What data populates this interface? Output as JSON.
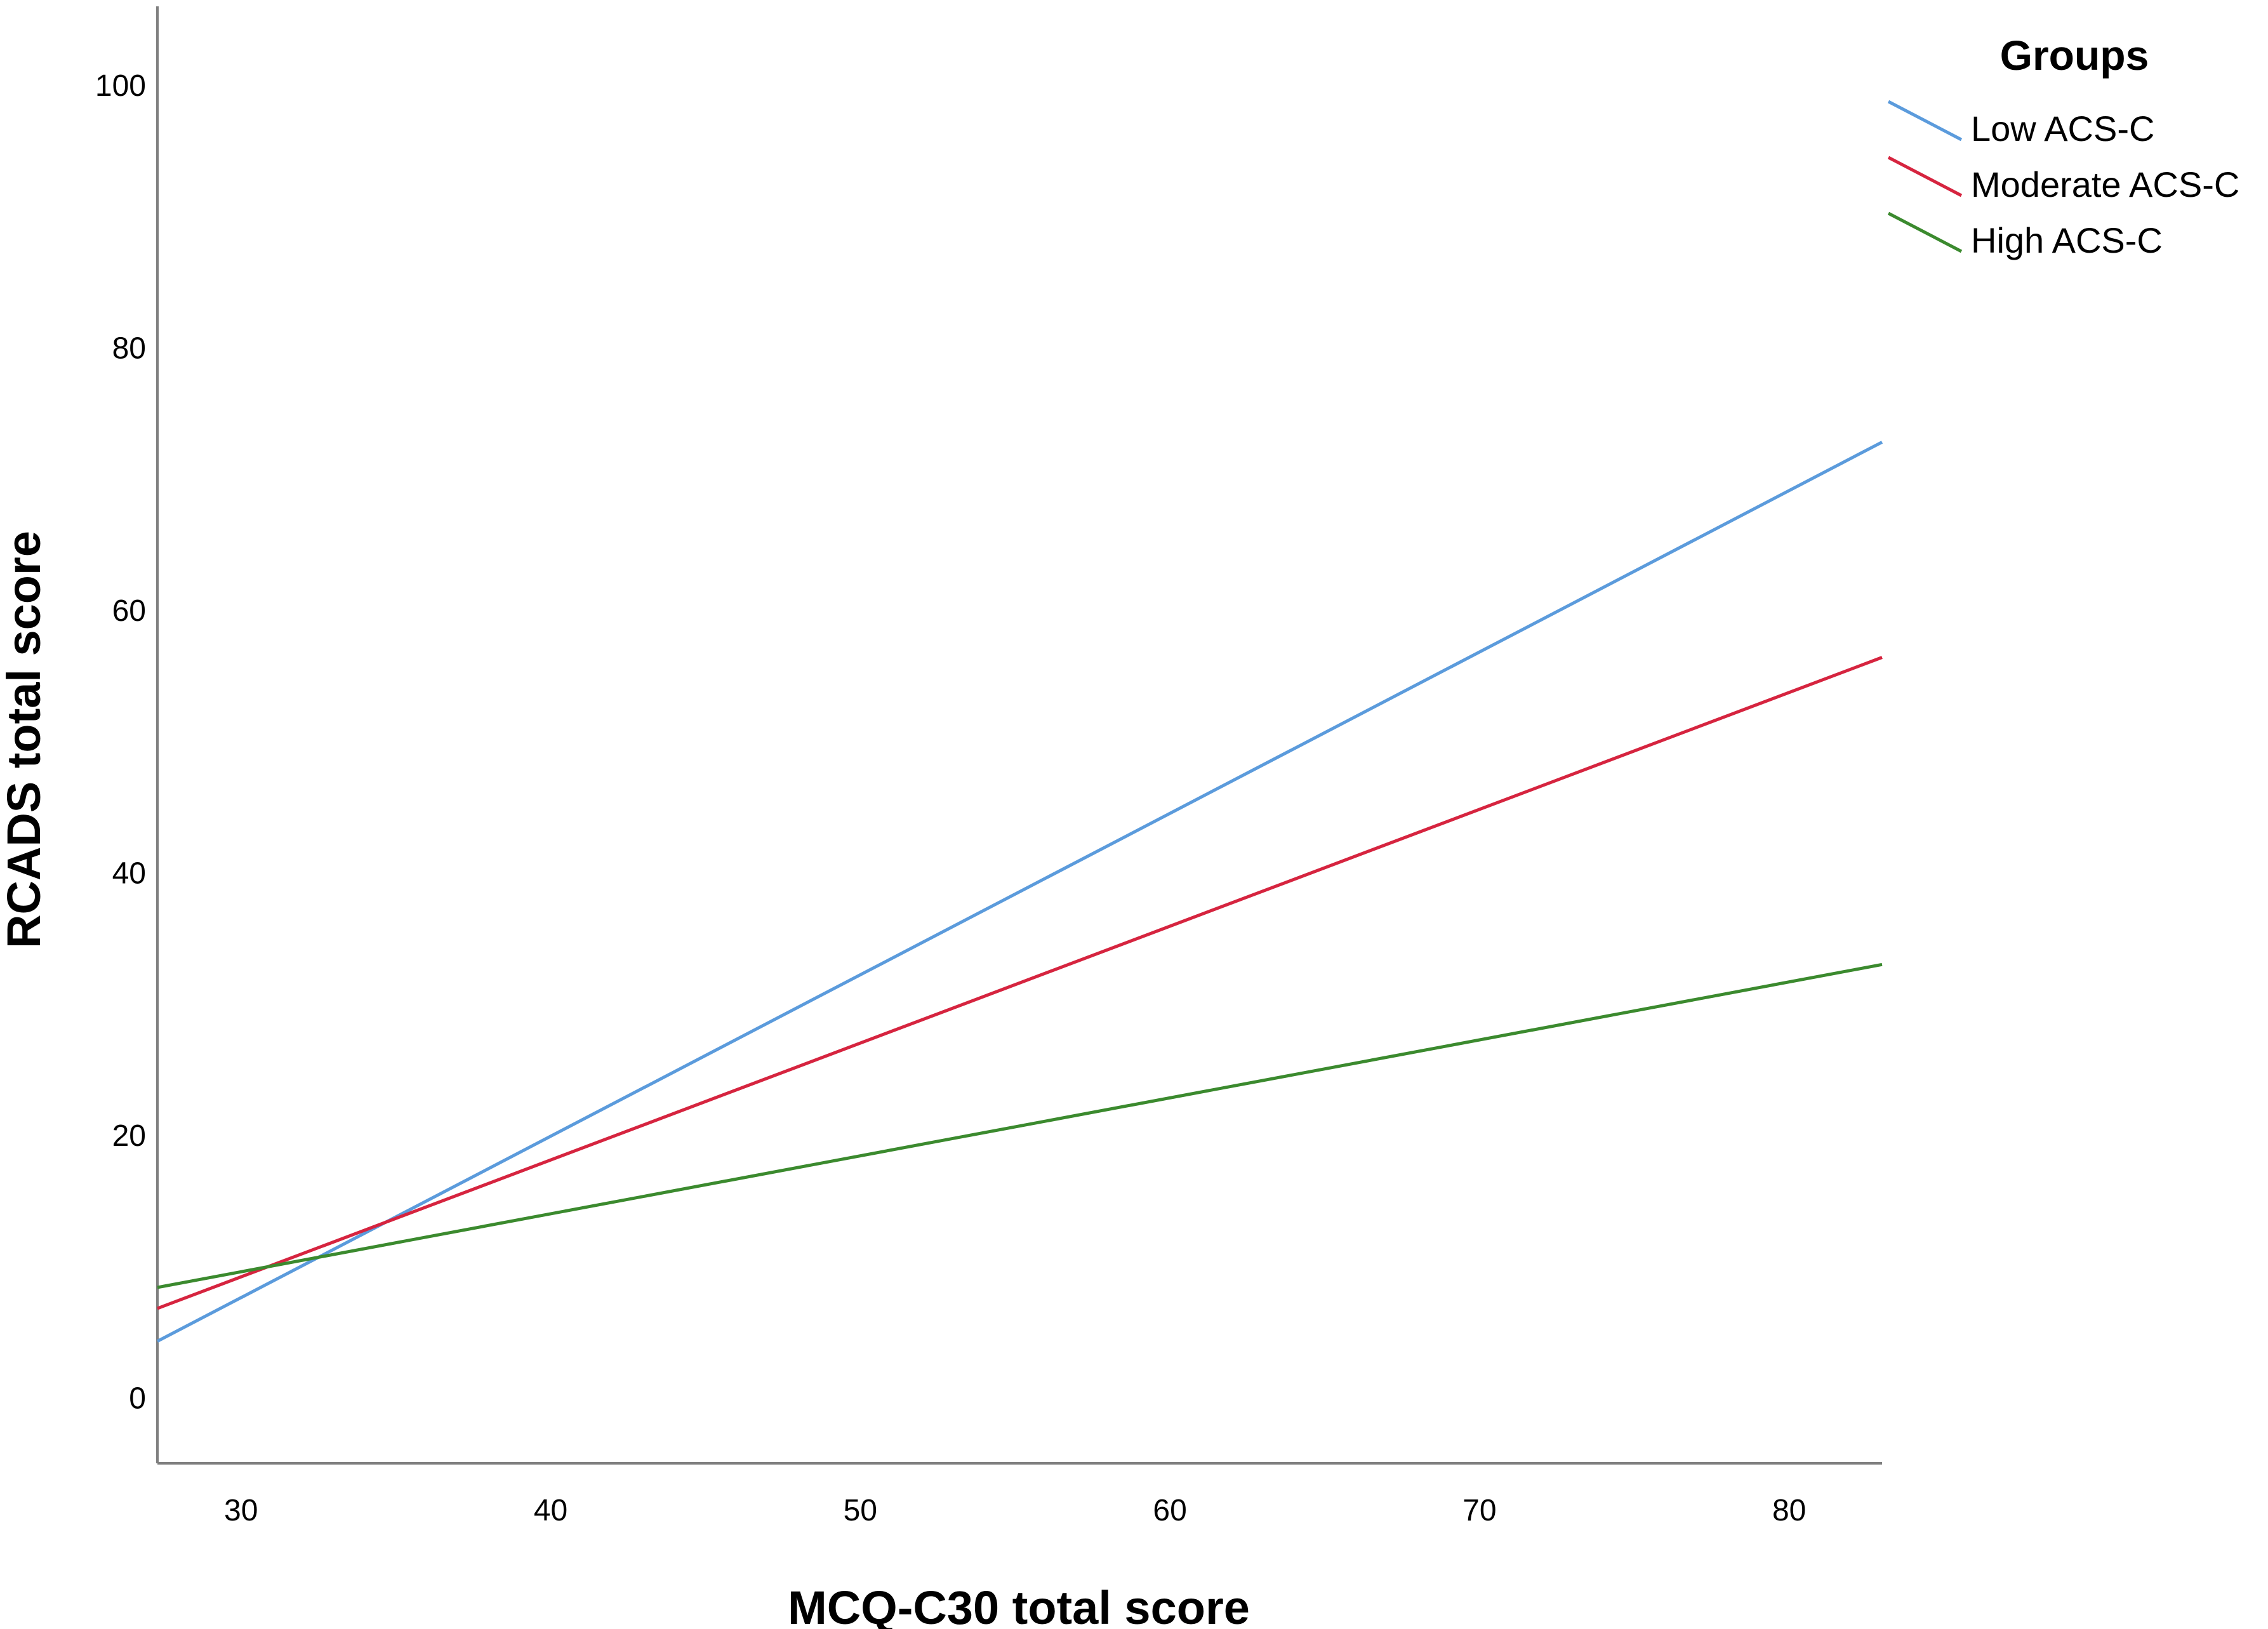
{
  "chart_data": {
    "type": "line",
    "xlabel": "MCQ-C30 total score",
    "ylabel": "RCADS total score",
    "xlim": [
      27.3,
      83
    ],
    "ylim": [
      -5,
      106
    ],
    "xticks": [
      30,
      40,
      50,
      60,
      70,
      80
    ],
    "yticks": [
      0,
      20,
      40,
      60,
      80,
      100
    ],
    "grid": false,
    "legend": {
      "title": "Groups",
      "position": "top-right"
    },
    "series": [
      {
        "name": "Low ACS-C",
        "color": "#5b9bdc",
        "x": [
          27.3,
          83
        ],
        "y": [
          4.3,
          72.8
        ]
      },
      {
        "name": "Moderate ACS-C",
        "color": "#d6243f",
        "x": [
          27.3,
          83
        ],
        "y": [
          6.8,
          56.4
        ]
      },
      {
        "name": "High ACS-C",
        "color": "#3b8a2e",
        "x": [
          27.3,
          83
        ],
        "y": [
          8.4,
          33.0
        ]
      }
    ]
  }
}
